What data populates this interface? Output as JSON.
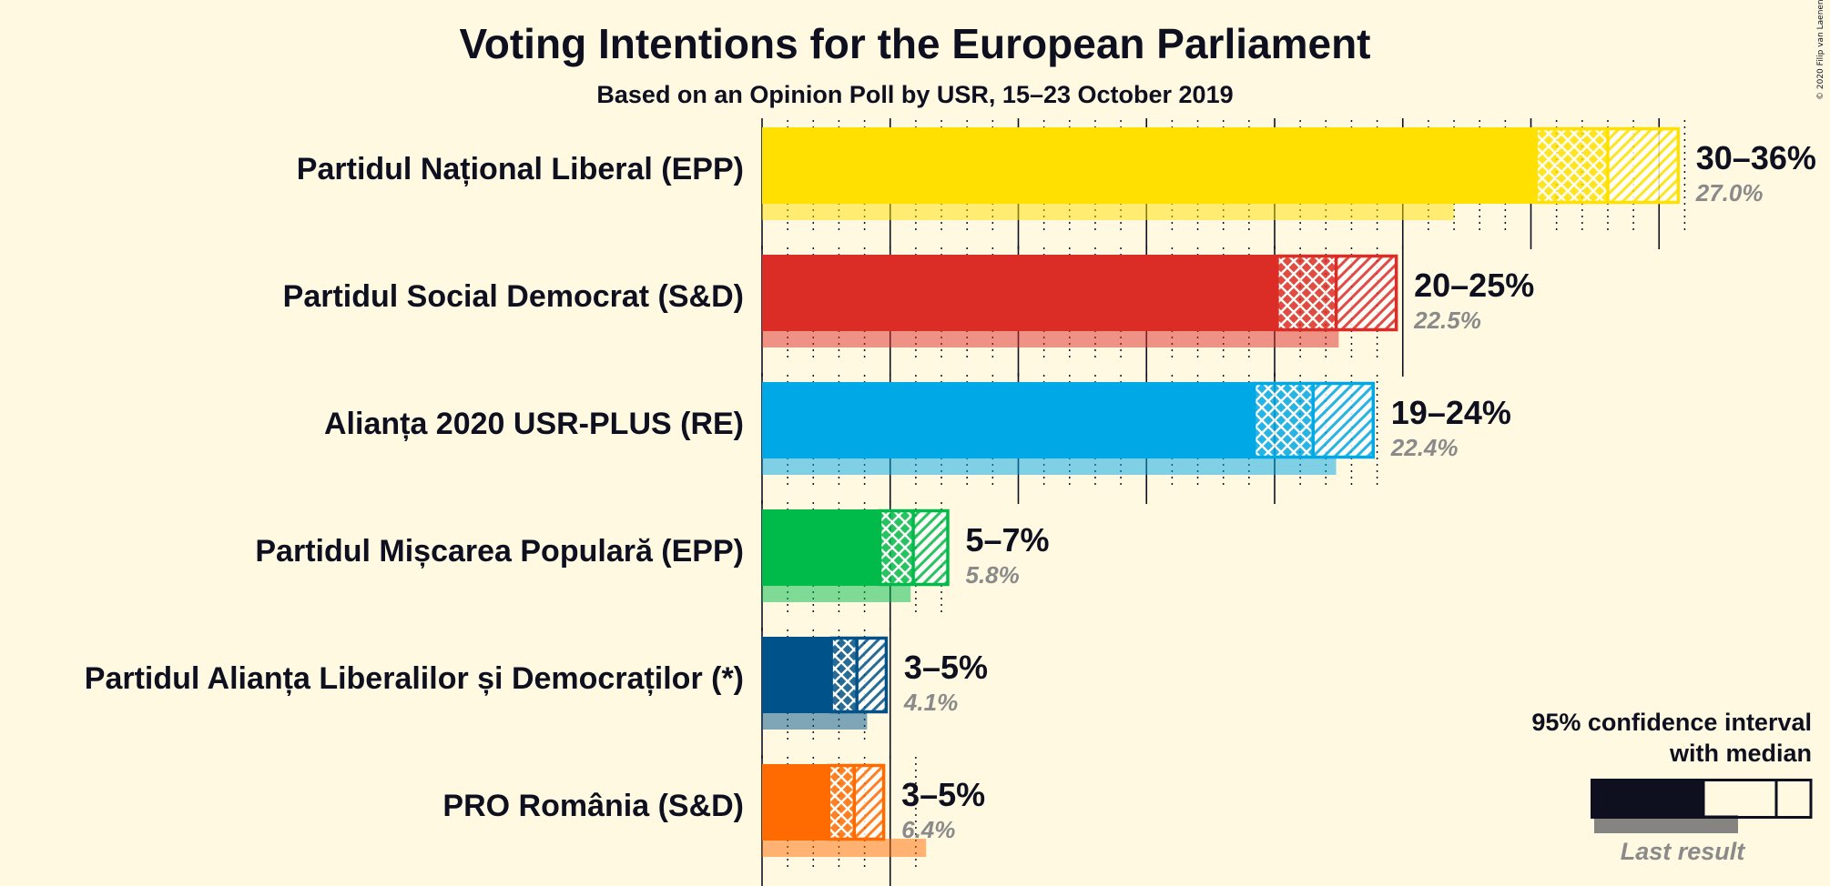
{
  "chart_data": {
    "type": "bar",
    "title": "Voting Intentions for the European Parliament",
    "subtitle": "Based on an Opinion Poll by USR, 15–23 October 2019",
    "copyright": "© 2020 Filip van Laenen",
    "series": [
      {
        "name": "Partidul Național Liberal (EPP)",
        "color": "#FFE000",
        "low": 30.2,
        "median": 33.0,
        "high": 35.8,
        "last": 27.0,
        "range_label": "30–36%",
        "last_label": "27.0%"
      },
      {
        "name": "Partidul Social Democrat (S&D)",
        "color": "#DC2C26",
        "low": 20.1,
        "median": 22.4,
        "high": 24.8,
        "last": 22.5,
        "range_label": "20–25%",
        "last_label": "22.5%"
      },
      {
        "name": "Alianța 2020 USR-PLUS (RE)",
        "color": "#00A8E6",
        "low": 19.2,
        "median": 21.5,
        "high": 23.9,
        "last": 22.4,
        "range_label": "19–24%",
        "last_label": "22.4%"
      },
      {
        "name": "Partidul Mișcarea Populară (EPP)",
        "color": "#00BB4A",
        "low": 4.6,
        "median": 5.9,
        "high": 7.3,
        "last": 5.8,
        "range_label": "5–7%",
        "last_label": "5.8%"
      },
      {
        "name": "Partidul Alianța Liberalilor și Democraților (*)",
        "color": "#00538A",
        "low": 2.7,
        "median": 3.7,
        "high": 4.9,
        "last": 4.1,
        "range_label": "3–5%",
        "last_label": "4.1%"
      },
      {
        "name": "PRO România (S&D)",
        "color": "#FF6B00",
        "low": 2.6,
        "median": 3.6,
        "high": 4.8,
        "last": 6.4,
        "range_label": "3–5%",
        "last_label": "6.4%"
      }
    ],
    "xlim": [
      0,
      36
    ],
    "grid": "major every 5%, minor every 1%"
  },
  "legend": {
    "line1": "95% confidence interval",
    "line2": "with median",
    "last_result": "Last result",
    "color": "#0E1020"
  }
}
